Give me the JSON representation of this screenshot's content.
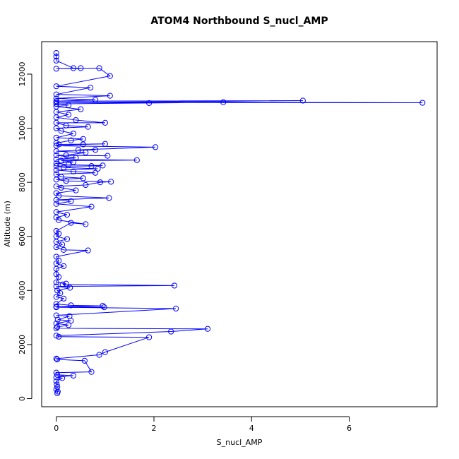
{
  "chart_data": {
    "type": "scatter",
    "title": "ATOM4 Northbound S_nucl_AMP",
    "xlabel": "S_nucl_AMP",
    "ylabel": "Altitude (m)",
    "xlim": [
      -0.3,
      7.8
    ],
    "ylim": [
      -300,
      13200
    ],
    "x_ticks": [
      0,
      2,
      4,
      6
    ],
    "y_ticks": [
      0,
      2000,
      4000,
      6000,
      8000,
      10000,
      12000
    ],
    "grid": false,
    "legend": "none",
    "style": {
      "color": "#0000ff",
      "line": true,
      "marker": "open-circle"
    },
    "series": [
      {
        "points": [
          [
            0.02,
            200
          ],
          [
            0.03,
            260
          ],
          [
            0.0,
            340
          ],
          [
            0.02,
            430
          ],
          [
            0.01,
            520
          ],
          [
            0.0,
            640
          ],
          [
            0.12,
            760
          ],
          [
            0.0,
            790
          ],
          [
            0.35,
            850
          ],
          [
            0.02,
            880
          ],
          [
            0.0,
            960
          ],
          [
            0.72,
            990
          ],
          [
            0.58,
            1400
          ],
          [
            0.02,
            1450
          ],
          [
            0.0,
            1480
          ],
          [
            0.88,
            1620
          ],
          [
            1.0,
            1720
          ],
          [
            1.9,
            2270
          ],
          [
            0.05,
            2290
          ],
          [
            0.0,
            2330
          ],
          [
            2.35,
            2480
          ],
          [
            3.1,
            2580
          ],
          [
            0.0,
            2600
          ],
          [
            0.02,
            2650
          ],
          [
            0.25,
            2720
          ],
          [
            0.0,
            2780
          ],
          [
            0.3,
            2880
          ],
          [
            0.03,
            2920
          ],
          [
            0.27,
            3050
          ],
          [
            0.0,
            3080
          ],
          [
            2.45,
            3330
          ],
          [
            0.0,
            3380
          ],
          [
            0.98,
            3380
          ],
          [
            0.0,
            3400
          ],
          [
            0.95,
            3430
          ],
          [
            0.3,
            3450
          ],
          [
            0.0,
            3500
          ],
          [
            0.15,
            3700
          ],
          [
            0.0,
            3760
          ],
          [
            0.08,
            3900
          ],
          [
            0.02,
            4000
          ],
          [
            0.28,
            4100
          ],
          [
            0.0,
            4150
          ],
          [
            2.42,
            4180
          ],
          [
            0.13,
            4220
          ],
          [
            0.2,
            4250
          ],
          [
            0.0,
            4300
          ],
          [
            0.05,
            4500
          ],
          [
            0.0,
            4600
          ],
          [
            0.0,
            4800
          ],
          [
            0.15,
            4900
          ],
          [
            0.0,
            5000
          ],
          [
            0.05,
            5100
          ],
          [
            0.0,
            5250
          ],
          [
            0.65,
            5480
          ],
          [
            0.15,
            5500
          ],
          [
            0.0,
            5600
          ],
          [
            0.12,
            5700
          ],
          [
            0.0,
            5800
          ],
          [
            0.22,
            5900
          ],
          [
            0.0,
            6000
          ],
          [
            0.05,
            6100
          ],
          [
            0.0,
            6200
          ],
          [
            0.3,
            6500
          ],
          [
            0.6,
            6450
          ],
          [
            0.05,
            6600
          ],
          [
            0.0,
            6700
          ],
          [
            0.22,
            6800
          ],
          [
            0.0,
            6900
          ],
          [
            0.72,
            7100
          ],
          [
            0.0,
            7200
          ],
          [
            0.3,
            7300
          ],
          [
            0.0,
            7350
          ],
          [
            1.08,
            7420
          ],
          [
            0.05,
            7500
          ],
          [
            0.0,
            7600
          ],
          [
            0.4,
            7700
          ],
          [
            0.1,
            7800
          ],
          [
            0.0,
            7850
          ],
          [
            0.6,
            7900
          ],
          [
            0.9,
            8000
          ],
          [
            1.12,
            8020
          ],
          [
            0.2,
            8050
          ],
          [
            0.0,
            8100
          ],
          [
            0.55,
            8150
          ],
          [
            0.1,
            8200
          ],
          [
            0.0,
            8300
          ],
          [
            0.8,
            8350
          ],
          [
            0.35,
            8400
          ],
          [
            0.0,
            8450
          ],
          [
            0.85,
            8500
          ],
          [
            0.15,
            8550
          ],
          [
            0.0,
            8600
          ],
          [
            0.72,
            8600
          ],
          [
            0.95,
            8620
          ],
          [
            0.25,
            8650
          ],
          [
            0.0,
            8700
          ],
          [
            0.35,
            8750
          ],
          [
            0.1,
            8800
          ],
          [
            1.65,
            8820
          ],
          [
            0.0,
            8850
          ],
          [
            0.4,
            8900
          ],
          [
            0.0,
            9000
          ],
          [
            1.05,
            8980
          ],
          [
            0.2,
            9000
          ],
          [
            0.6,
            9100
          ],
          [
            0.0,
            9150
          ],
          [
            0.8,
            9200
          ],
          [
            0.45,
            9200
          ],
          [
            2.03,
            9300
          ],
          [
            0.0,
            9350
          ],
          [
            0.55,
            9400
          ],
          [
            1.0,
            9420
          ],
          [
            0.05,
            9400
          ],
          [
            0.0,
            9450
          ],
          [
            0.3,
            9550
          ],
          [
            0.55,
            9600
          ],
          [
            0.0,
            9650
          ],
          [
            0.35,
            9800
          ],
          [
            0.1,
            9900
          ],
          [
            0.0,
            10000
          ],
          [
            0.65,
            10050
          ],
          [
            0.2,
            10100
          ],
          [
            0.0,
            10200
          ],
          [
            1.0,
            10200
          ],
          [
            0.4,
            10300
          ],
          [
            0.0,
            10400
          ],
          [
            0.25,
            10500
          ],
          [
            0.0,
            10600
          ],
          [
            0.5,
            10700
          ],
          [
            0.0,
            10800
          ],
          [
            0.25,
            10850
          ],
          [
            0.0,
            10900
          ],
          [
            1.9,
            10930
          ],
          [
            3.42,
            10960
          ],
          [
            7.5,
            10940
          ],
          [
            0.0,
            10950
          ],
          [
            5.05,
            11020
          ],
          [
            0.0,
            11000
          ],
          [
            0.8,
            11050
          ],
          [
            0.0,
            11100
          ],
          [
            1.1,
            11200
          ],
          [
            0.0,
            11250
          ],
          [
            0.7,
            11500
          ],
          [
            0.0,
            11550
          ],
          [
            1.1,
            11930
          ],
          [
            0.88,
            12220
          ],
          [
            0.0,
            12200
          ],
          [
            0.5,
            12220
          ],
          [
            0.35,
            12220
          ],
          [
            0.0,
            12500
          ],
          [
            0.0,
            12650
          ],
          [
            0.0,
            12780
          ]
        ]
      }
    ]
  }
}
